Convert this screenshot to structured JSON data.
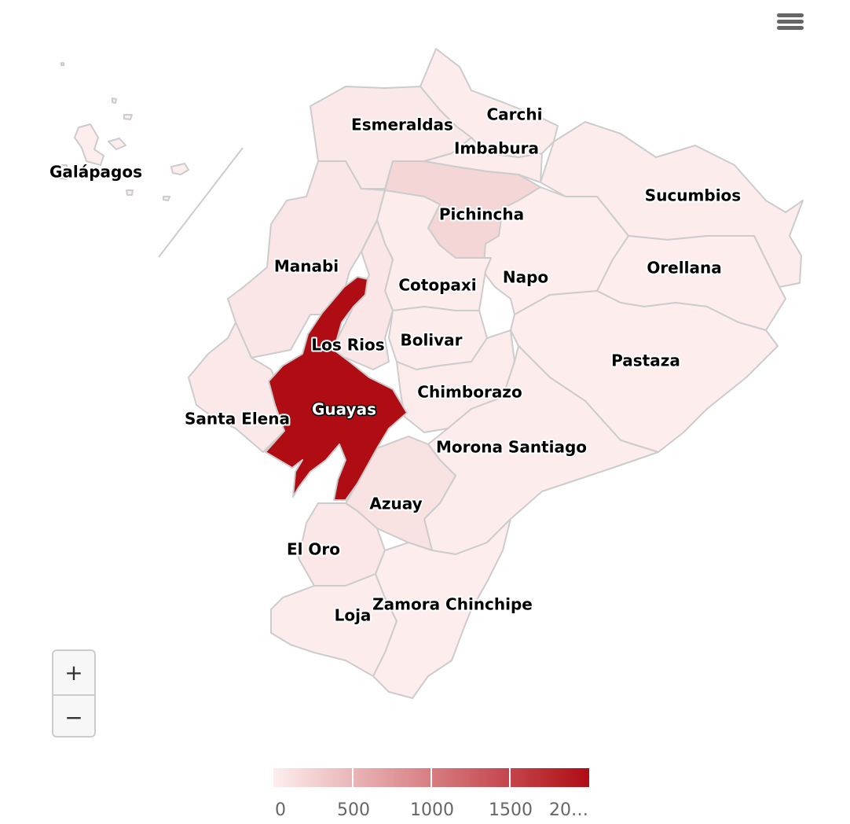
{
  "map": {
    "regions": [
      {
        "id": "esmeraldas",
        "name": "Esmeraldas",
        "value": 40
      },
      {
        "id": "carchi",
        "name": "Carchi",
        "value": 15
      },
      {
        "id": "imbabura",
        "name": "Imbabura",
        "value": 20
      },
      {
        "id": "sucumbios",
        "name": "Sucumbios",
        "value": 15
      },
      {
        "id": "pichincha",
        "name": "Pichincha",
        "value": 210
      },
      {
        "id": "manabi",
        "name": "Manabi",
        "value": 70
      },
      {
        "id": "napo",
        "name": "Napo",
        "value": 10
      },
      {
        "id": "orellana",
        "name": "Orellana",
        "value": 10
      },
      {
        "id": "cotopaxi",
        "name": "Cotopaxi",
        "value": 20
      },
      {
        "id": "losrios",
        "name": "Los Rios",
        "value": 75
      },
      {
        "id": "bolivar",
        "name": "Bolivar",
        "value": 20
      },
      {
        "id": "pastaza",
        "name": "Pastaza",
        "value": 10
      },
      {
        "id": "chimborazo",
        "name": "Chimborazo",
        "value": 30
      },
      {
        "id": "guayas",
        "name": "Guayas",
        "value": 2000
      },
      {
        "id": "santaelena",
        "name": "Santa Elena",
        "value": 40
      },
      {
        "id": "moronasantiago",
        "name": "Morona Santiago",
        "value": 15
      },
      {
        "id": "azuay",
        "name": "Azuay",
        "value": 110
      },
      {
        "id": "eloro",
        "name": "El Oro",
        "value": 60
      },
      {
        "id": "loja",
        "name": "Loja",
        "value": 20
      },
      {
        "id": "zamorachinchipe",
        "name": "Zamora Chinchipe",
        "value": 10
      },
      {
        "id": "galapagos",
        "name": "Galápagos",
        "value": 10
      }
    ]
  },
  "legend": {
    "min": 0,
    "max": 2000,
    "min_color": "#fdeeee",
    "max_color": "#b00c14",
    "labels": [
      "0",
      "500",
      "1000",
      "1500",
      "20…"
    ]
  },
  "zoom": {
    "in_label": "+",
    "out_label": "−"
  },
  "colors": {
    "border": "#cccccc",
    "menu_icon": "#666666"
  },
  "icons": {
    "menu": "hamburger-menu-icon"
  }
}
